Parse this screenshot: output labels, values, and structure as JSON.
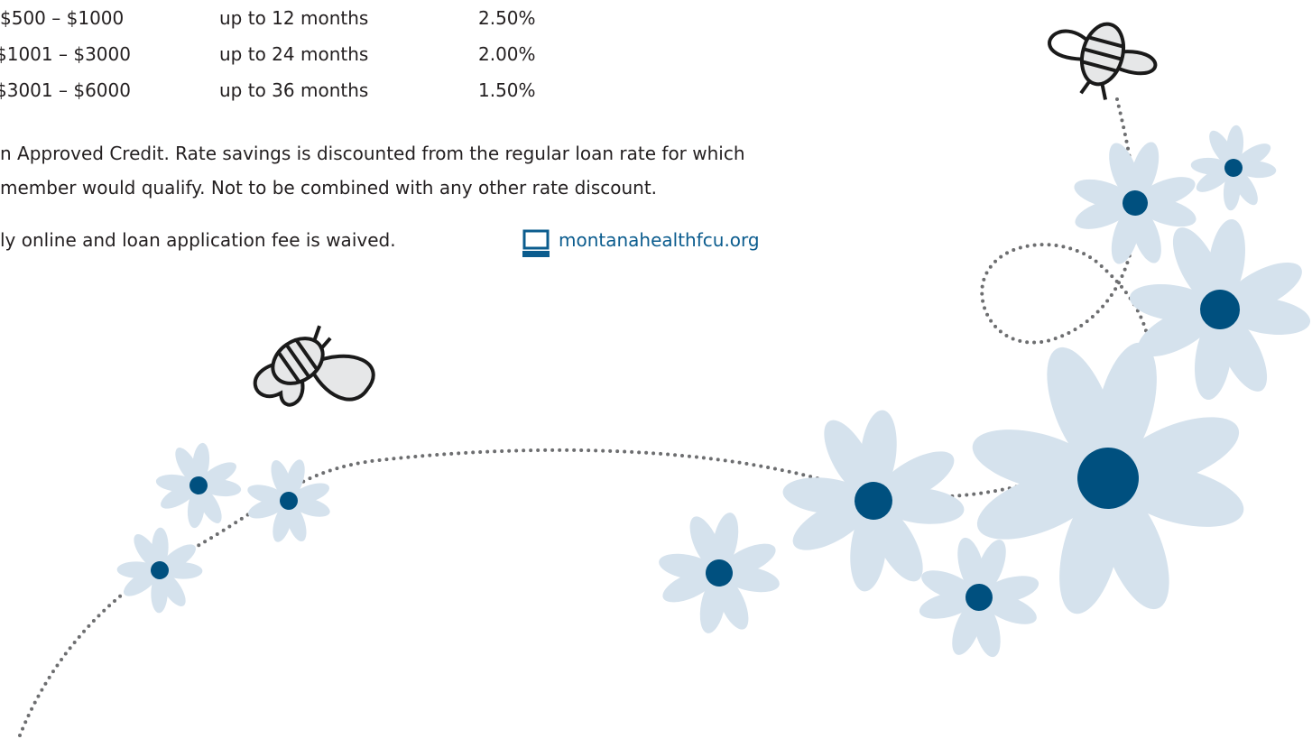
{
  "rates": {
    "rows": [
      [
        "$500 – $1000",
        "up to 12 months",
        "2.50%"
      ],
      [
        "$1001 – $3000",
        "up to 24 months",
        "2.00%"
      ],
      [
        "$3001 – $6000",
        "up to 36 months",
        "1.50%"
      ]
    ]
  },
  "disclaimer": [
    "n Approved Credit. Rate savings is discounted from the regular loan rate for which",
    "member would qualify. Not to be combined with any other rate discount."
  ],
  "online": {
    "text": "ly online and loan application fee is waived.",
    "link": "montanahealthfcu.org"
  }
}
